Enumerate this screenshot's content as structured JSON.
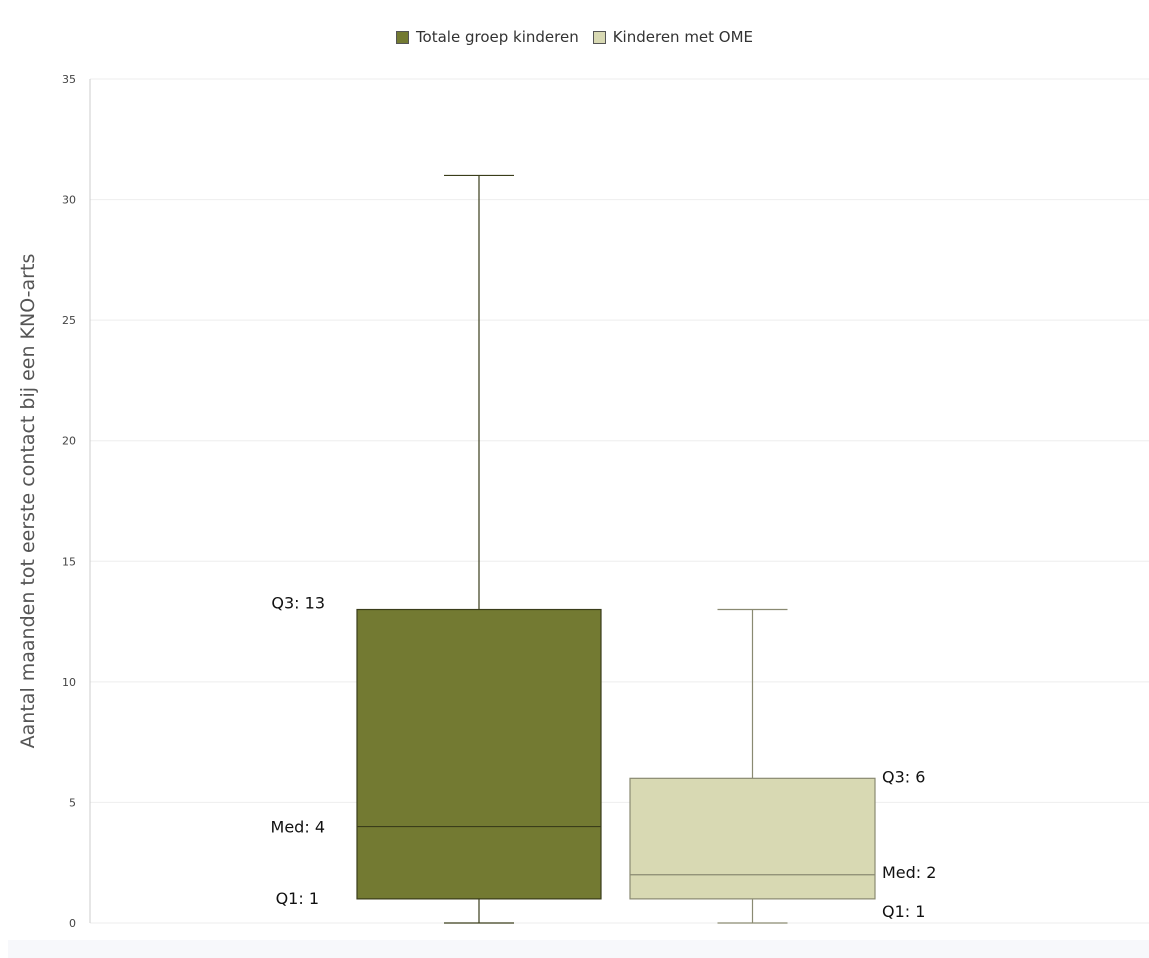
{
  "chart_data": {
    "type": "boxplot",
    "ylabel": "Aantal maanden tot eerste contact bij een KNO-arts",
    "ylim": [
      0,
      35
    ],
    "yticks": [
      0,
      5,
      10,
      15,
      20,
      25,
      30,
      35
    ],
    "grid": true,
    "legend_position": "top-center",
    "series": [
      {
        "name": "Totale groep kinderen",
        "color": "#737a32",
        "min": 0,
        "q1": 1,
        "median": 4,
        "q3": 13,
        "max": 31,
        "labels": {
          "q3": "Q3: 13",
          "median": "Med: 4",
          "q1": "Q1: 1"
        },
        "label_side": "left"
      },
      {
        "name": "Kinderen met OME",
        "color": "#d8d9b3",
        "min": 0,
        "q1": 1,
        "median": 2,
        "q3": 6,
        "max": 13,
        "labels": {
          "q3": "Q3: 6",
          "median": "Med: 2",
          "q1": "Q1: 1"
        },
        "label_side": "right"
      }
    ]
  }
}
